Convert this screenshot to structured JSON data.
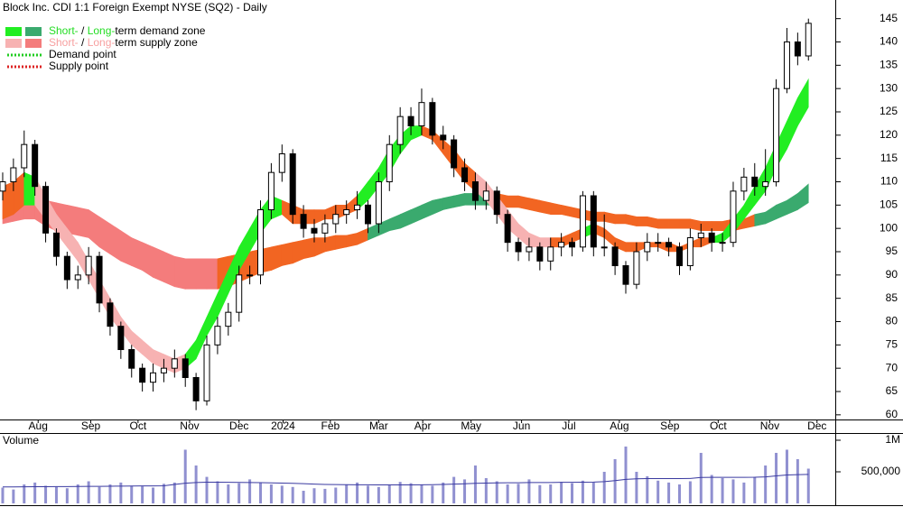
{
  "chart_data": [
    {
      "type": "candlestick",
      "title": "Block Inc. CDI 1:1 Foreign Exempt NYSE (SQ2) - Daily",
      "legend": [
        {
          "swatches": [
            "#22ee22",
            "#3aaa6e"
          ],
          "parts": [
            {
              "text": "Short-",
              "color": "#22dd22"
            },
            {
              "text": " / "
            },
            {
              "text": "Long-",
              "color": "#22dd22"
            },
            {
              "text": "term demand zone"
            }
          ]
        },
        {
          "swatches": [
            "#f7b2b2",
            "#f47c7c"
          ],
          "parts": [
            {
              "text": "Short-",
              "color": "#f7a0a0"
            },
            {
              "text": " / "
            },
            {
              "text": "Long-",
              "color": "#f7a0a0"
            },
            {
              "text": "term supply zone"
            }
          ]
        },
        {
          "dotted": "#22cc22",
          "parts": [
            {
              "text": "Demand point"
            }
          ]
        },
        {
          "dotted": "#dd2222",
          "parts": [
            {
              "text": "Supply point"
            }
          ]
        }
      ],
      "xlim": [
        -0.25,
        77.5
      ],
      "xticks": [
        {
          "value": 3.3,
          "label": "Aug"
        },
        {
          "value": 8.2,
          "label": "Sep"
        },
        {
          "value": 12.6,
          "label": "Oct"
        },
        {
          "value": 17.4,
          "label": "Nov"
        },
        {
          "value": 22.0,
          "label": "Dec"
        },
        {
          "value": 26.1,
          "label": "2024"
        },
        {
          "value": 30.5,
          "label": "Feb"
        },
        {
          "value": 35.0,
          "label": "Mar"
        },
        {
          "value": 39.1,
          "label": "Apr"
        },
        {
          "value": 43.6,
          "label": "May"
        },
        {
          "value": 48.3,
          "label": "Jun"
        },
        {
          "value": 52.7,
          "label": "Jul"
        },
        {
          "value": 57.4,
          "label": "Aug"
        },
        {
          "value": 62.1,
          "label": "Sep"
        },
        {
          "value": 66.6,
          "label": "Oct"
        },
        {
          "value": 71.4,
          "label": "Nov"
        },
        {
          "value": 75.8,
          "label": "Dec"
        }
      ],
      "ylim": [
        59,
        149
      ],
      "yticks": [
        145,
        140,
        135,
        130,
        125,
        120,
        115,
        110,
        105,
        100,
        95,
        90,
        85,
        80,
        75,
        70,
        65,
        60
      ],
      "open": [
        108,
        110,
        113,
        118,
        109,
        99,
        94,
        89,
        90,
        94,
        84,
        79,
        74,
        70,
        67,
        69,
        70,
        72,
        68,
        63,
        75,
        79,
        82,
        90,
        90,
        104,
        112,
        116,
        103,
        100,
        99,
        101,
        103,
        104,
        105,
        101,
        110,
        118,
        124,
        122,
        127,
        120,
        119,
        113,
        110,
        106,
        108,
        103,
        97,
        95,
        96,
        93,
        96,
        97,
        96,
        107,
        96,
        96,
        92,
        88,
        95,
        97,
        97,
        96,
        92,
        98,
        99,
        97,
        97,
        108,
        111,
        109,
        110,
        130,
        140,
        137
      ],
      "high": [
        112,
        115,
        121,
        119,
        110,
        100,
        95,
        92,
        96,
        95,
        85,
        80,
        75,
        71,
        71,
        72,
        74,
        73,
        69,
        77,
        81,
        84,
        92,
        92,
        106,
        114,
        118,
        117,
        105,
        102,
        103,
        105,
        106,
        108,
        106,
        112,
        120,
        126,
        126,
        130,
        128,
        122,
        120,
        115,
        112,
        110,
        109,
        104,
        98,
        98,
        97,
        98,
        99,
        98,
        108,
        108,
        103,
        97,
        93,
        97,
        99,
        99,
        98,
        97,
        100,
        101,
        100,
        99,
        110,
        113,
        114,
        117,
        132,
        143,
        142,
        145
      ],
      "low": [
        106,
        108,
        111,
        107,
        97,
        92,
        87,
        87,
        88,
        82,
        77,
        72,
        68,
        65,
        65,
        67,
        68,
        66,
        61,
        62,
        73,
        77,
        80,
        88,
        88,
        102,
        110,
        101,
        98,
        97,
        97,
        99,
        101,
        102,
        99,
        99,
        108,
        116,
        120,
        120,
        118,
        117,
        111,
        108,
        104,
        104,
        101,
        95,
        93,
        93,
        91,
        91,
        94,
        94,
        95,
        94,
        94,
        90,
        86,
        87,
        93,
        95,
        94,
        90,
        91,
        96,
        95,
        95,
        96,
        106,
        107,
        107,
        109,
        129,
        135,
        136
      ],
      "close": [
        110,
        113,
        118,
        109,
        99,
        94,
        89,
        90,
        94,
        84,
        79,
        74,
        70,
        67,
        69,
        70,
        72,
        68,
        63,
        75,
        79,
        82,
        90,
        90,
        104,
        112,
        116,
        103,
        100,
        99,
        101,
        103,
        104,
        105,
        101,
        110,
        118,
        124,
        122,
        127,
        120,
        119,
        113,
        110,
        106,
        108,
        103,
        97,
        95,
        96,
        93,
        96,
        97,
        96,
        107,
        96,
        96,
        92,
        88,
        95,
        97,
        97,
        96,
        92,
        98,
        99,
        97,
        97,
        108,
        111,
        109,
        110,
        130,
        140,
        137,
        144
      ],
      "long_term_zone": {
        "upper": [
          106,
          106.5,
          107,
          107,
          106,
          105.5,
          105,
          104.5,
          104,
          102.5,
          101,
          99.5,
          98,
          97,
          96,
          95,
          94,
          93.5,
          93.5,
          93.5,
          93.5,
          94,
          94.5,
          95,
          95.5,
          96,
          96.5,
          97,
          97.5,
          98,
          98,
          98.5,
          98.5,
          99,
          100,
          101,
          102,
          103,
          104,
          105,
          106,
          106.5,
          107,
          107.5,
          107.5,
          107.5,
          107.5,
          107,
          107,
          106.5,
          106,
          105.5,
          105,
          104.5,
          104,
          103.5,
          103.5,
          103,
          103,
          102.5,
          102.5,
          102,
          102,
          102,
          102,
          101.5,
          101.5,
          101.5,
          102,
          102,
          103,
          103.5,
          105,
          106,
          107.5,
          109.5
        ],
        "lower": [
          101,
          101.5,
          102,
          102,
          100.5,
          99.5,
          99,
          98.5,
          98,
          96,
          94.5,
          93,
          92,
          91,
          89.5,
          88.5,
          87.5,
          87,
          87,
          87,
          87,
          87.5,
          88.5,
          89.5,
          90.5,
          91,
          92,
          92.5,
          93.5,
          94,
          95,
          95.5,
          96,
          96.5,
          97.5,
          98.5,
          99.5,
          100,
          101,
          102,
          103,
          104,
          104.5,
          105,
          105,
          105,
          105,
          104.5,
          104.5,
          104,
          103.5,
          103,
          103,
          102.5,
          102,
          101.5,
          101.5,
          101,
          101,
          100.5,
          100.5,
          100,
          100,
          100,
          100,
          99.5,
          99.5,
          99.5,
          99.5,
          100,
          100.5,
          101,
          102,
          103,
          104,
          105.5
        ],
        "colors": [
          "#f47c7c",
          "#f47c7c",
          "#f47c7c",
          "#f47c7c",
          "#f47c7c",
          "#f47c7c",
          "#f47c7c",
          "#f47c7c",
          "#f47c7c",
          "#f47c7c",
          "#f47c7c",
          "#f47c7c",
          "#f47c7c",
          "#f47c7c",
          "#f47c7c",
          "#f47c7c",
          "#f47c7c",
          "#f47c7c",
          "#f47c7c",
          "#f47c7c",
          "#f26522",
          "#f26522",
          "#f26522",
          "#f26522",
          "#f26522",
          "#f26522",
          "#f26522",
          "#f26522",
          "#f26522",
          "#f26522",
          "#f26522",
          "#f26522",
          "#f26522",
          "#f26522",
          "#3aaa6e",
          "#3aaa6e",
          "#3aaa6e",
          "#3aaa6e",
          "#3aaa6e",
          "#3aaa6e",
          "#3aaa6e",
          "#3aaa6e",
          "#3aaa6e",
          "#3aaa6e",
          "#3aaa6e",
          "#3aaa6e",
          "#f26522",
          "#f26522",
          "#f26522",
          "#f26522",
          "#f26522",
          "#f26522",
          "#f26522",
          "#f26522",
          "#f26522",
          "#f26522",
          "#f26522",
          "#f26522",
          "#f26522",
          "#f26522",
          "#f26522",
          "#f26522",
          "#f26522",
          "#f26522",
          "#f26522",
          "#f26522",
          "#f26522",
          "#f26522",
          "#f26522",
          "#f26522",
          "#3aaa6e",
          "#3aaa6e",
          "#3aaa6e",
          "#3aaa6e",
          "#3aaa6e",
          "#3aaa6e"
        ]
      },
      "short_term_zone": {
        "upper": [
          109,
          110,
          112,
          111,
          107,
          103,
          100,
          97,
          93,
          89,
          85,
          81,
          78,
          76,
          74,
          73,
          72,
          73,
          76,
          81,
          86,
          91,
          96,
          100,
          104,
          107,
          106,
          105,
          104,
          104,
          104,
          105,
          105,
          107,
          110,
          113,
          117,
          120,
          122,
          122,
          121,
          119,
          117,
          114,
          112,
          110,
          107,
          104,
          101,
          99,
          98,
          98,
          98,
          99,
          100,
          101,
          100,
          98,
          97,
          97,
          97,
          97,
          97,
          96,
          97,
          98,
          98,
          99,
          102,
          105,
          109,
          113,
          118,
          123,
          128,
          132
        ],
        "lower": [
          102,
          103,
          105,
          105,
          102,
          99,
          96,
          93,
          89,
          85,
          81,
          78,
          75,
          73,
          71,
          70,
          69,
          70,
          72,
          77,
          81,
          86,
          91,
          95,
          99,
          102,
          103,
          101,
          101,
          101,
          102,
          102,
          103,
          104,
          106,
          109,
          112,
          116,
          119,
          120,
          119,
          116,
          113,
          110,
          108,
          106,
          103,
          100,
          98,
          96,
          96,
          96,
          96,
          97,
          98,
          99,
          98,
          96,
          95,
          95,
          96,
          96,
          95,
          95,
          96,
          96,
          97,
          97,
          99,
          102,
          105,
          108,
          113,
          117,
          122,
          126
        ],
        "colors": [
          "#f26522",
          "#f26522",
          "#22ee22",
          "#f7b2b2",
          "#f7b2b2",
          "#f7b2b2",
          "#f7b2b2",
          "#f7b2b2",
          "#f7b2b2",
          "#f7b2b2",
          "#f7b2b2",
          "#f7b2b2",
          "#f7b2b2",
          "#f7b2b2",
          "#f7b2b2",
          "#f7b2b2",
          "#f7b2b2",
          "#22ee22",
          "#22ee22",
          "#22ee22",
          "#22ee22",
          "#22ee22",
          "#22ee22",
          "#22ee22",
          "#22ee22",
          "#22ee22",
          "#f26522",
          "#f26522",
          "#f26522",
          "#f26522",
          "#f26522",
          "#f26522",
          "#f26522",
          "#22ee22",
          "#22ee22",
          "#22ee22",
          "#22ee22",
          "#22ee22",
          "#22ee22",
          "#f26522",
          "#f26522",
          "#f26522",
          "#f26522",
          "#f26522",
          "#f7b2b2",
          "#f7b2b2",
          "#f7b2b2",
          "#f7b2b2",
          "#f7b2b2",
          "#f7b2b2",
          "#f7b2b2",
          "#f26522",
          "#f26522",
          "#f26522",
          "#22ee22",
          "#f26522",
          "#f26522",
          "#f26522",
          "#f26522",
          "#f26522",
          "#f26522",
          "#f26522",
          "#f26522",
          "#f26522",
          "#f26522",
          "#f26522",
          "#22ee22",
          "#22ee22",
          "#22ee22",
          "#22ee22",
          "#22ee22",
          "#22ee22",
          "#22ee22",
          "#22ee22",
          "#22ee22",
          "#22ee22"
        ]
      }
    },
    {
      "type": "bar",
      "title": "Volume",
      "color": "#9090d0",
      "average_color": "#3a3aa0",
      "ylim": [
        0,
        1114000
      ],
      "yticks": [
        {
          "value": 1000000,
          "label": "1M"
        },
        {
          "value": 500000,
          "label": "500,000"
        }
      ],
      "values": [
        250000,
        220000,
        300000,
        330000,
        280000,
        260000,
        240000,
        300000,
        350000,
        260000,
        300000,
        330000,
        280000,
        270000,
        250000,
        310000,
        330000,
        850000,
        600000,
        420000,
        350000,
        300000,
        320000,
        380000,
        330000,
        300000,
        280000,
        260000,
        200000,
        240000,
        230000,
        250000,
        300000,
        330000,
        280000,
        260000,
        300000,
        340000,
        320000,
        300000,
        280000,
        330000,
        420000,
        380000,
        600000,
        400000,
        350000,
        300000,
        310000,
        380000,
        290000,
        300000,
        340000,
        320000,
        360000,
        330000,
        500000,
        700000,
        900000,
        500000,
        430000,
        360000,
        330000,
        300000,
        350000,
        800000,
        450000,
        400000,
        380000,
        330000,
        420000,
        600000,
        800000,
        850000,
        700000,
        550000
      ],
      "average": [
        260000,
        260000,
        262000,
        265000,
        265000,
        266000,
        266000,
        268000,
        270000,
        270000,
        272000,
        274000,
        275000,
        276000,
        276000,
        278000,
        300000,
        320000,
        330000,
        335000,
        335000,
        334000,
        332000,
        330000,
        328000,
        325000,
        322000,
        318000,
        312000,
        305000,
        300000,
        298000,
        296000,
        295000,
        294000,
        293000,
        292000,
        292000,
        293000,
        294000,
        296000,
        300000,
        305000,
        310000,
        318000,
        322000,
        325000,
        326000,
        327000,
        330000,
        330000,
        331000,
        333000,
        334000,
        336000,
        338000,
        345000,
        360000,
        380000,
        390000,
        392000,
        393000,
        393000,
        392000,
        395000,
        410000,
        412000,
        413000,
        413000,
        412000,
        414000,
        420000,
        435000,
        450000,
        455000,
        458000
      ]
    }
  ]
}
